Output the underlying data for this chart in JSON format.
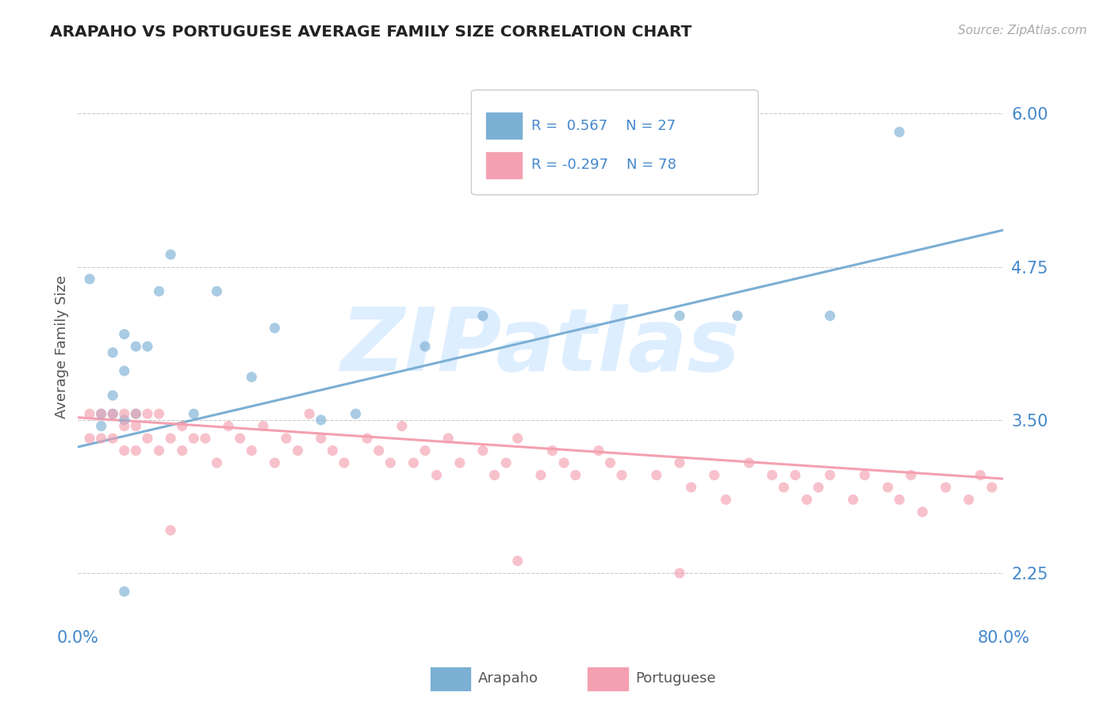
{
  "title": "ARAPAHO VS PORTUGUESE AVERAGE FAMILY SIZE CORRELATION CHART",
  "source_text": "Source: ZipAtlas.com",
  "ylabel": "Average Family Size",
  "xlim": [
    0.0,
    0.8
  ],
  "ylim": [
    1.85,
    6.35
  ],
  "yticks": [
    2.25,
    3.5,
    4.75,
    6.0
  ],
  "ytick_labels": [
    "2.25",
    "3.50",
    "4.75",
    "6.00"
  ],
  "xtick_labels": [
    "0.0%",
    "80.0%"
  ],
  "arapaho_color": "#7BAFD4",
  "portuguese_color": "#F4A0B0",
  "arapaho_scatter_color": "#7BAFD4",
  "portuguese_scatter_color": "#F4A0B0",
  "arapaho_R": 0.567,
  "arapaho_N": 27,
  "portuguese_R": -0.297,
  "portuguese_N": 78,
  "background_color": "#ffffff",
  "grid_color": "#cccccc",
  "title_color": "#222222",
  "axis_label_color": "#555555",
  "tick_color": "#4488CC",
  "arapaho_line_x": [
    0.0,
    0.8
  ],
  "arapaho_line_y": [
    3.28,
    5.05
  ],
  "portuguese_line_x": [
    0.0,
    0.8
  ],
  "portuguese_line_y": [
    3.52,
    3.02
  ],
  "arapaho_points_x": [
    0.01,
    0.02,
    0.02,
    0.03,
    0.03,
    0.03,
    0.04,
    0.04,
    0.04,
    0.05,
    0.05,
    0.06,
    0.07,
    0.08,
    0.1,
    0.12,
    0.15,
    0.17,
    0.21,
    0.24,
    0.3,
    0.35,
    0.52,
    0.57,
    0.65,
    0.71,
    0.04
  ],
  "arapaho_points_y": [
    4.65,
    3.55,
    3.45,
    4.05,
    3.55,
    3.7,
    3.9,
    4.2,
    3.5,
    4.1,
    3.55,
    4.1,
    4.55,
    4.85,
    3.55,
    4.55,
    3.85,
    4.25,
    3.5,
    3.55,
    4.1,
    4.35,
    4.35,
    4.35,
    4.35,
    5.85,
    2.1
  ],
  "portuguese_points_x": [
    0.01,
    0.01,
    0.02,
    0.02,
    0.03,
    0.03,
    0.04,
    0.04,
    0.04,
    0.05,
    0.05,
    0.05,
    0.06,
    0.06,
    0.07,
    0.07,
    0.08,
    0.09,
    0.09,
    0.1,
    0.11,
    0.12,
    0.13,
    0.14,
    0.15,
    0.16,
    0.17,
    0.18,
    0.19,
    0.2,
    0.21,
    0.22,
    0.23,
    0.25,
    0.26,
    0.27,
    0.28,
    0.29,
    0.3,
    0.31,
    0.32,
    0.33,
    0.35,
    0.36,
    0.37,
    0.38,
    0.4,
    0.41,
    0.42,
    0.43,
    0.45,
    0.46,
    0.47,
    0.5,
    0.52,
    0.53,
    0.55,
    0.56,
    0.58,
    0.6,
    0.61,
    0.62,
    0.63,
    0.64,
    0.65,
    0.67,
    0.68,
    0.7,
    0.71,
    0.72,
    0.73,
    0.75,
    0.77,
    0.78,
    0.79,
    0.08,
    0.38,
    0.52
  ],
  "portuguese_points_y": [
    3.55,
    3.35,
    3.55,
    3.35,
    3.55,
    3.35,
    3.45,
    3.25,
    3.55,
    3.55,
    3.25,
    3.45,
    3.55,
    3.35,
    3.25,
    3.55,
    3.35,
    3.45,
    3.25,
    3.35,
    3.35,
    3.15,
    3.45,
    3.35,
    3.25,
    3.45,
    3.15,
    3.35,
    3.25,
    3.55,
    3.35,
    3.25,
    3.15,
    3.35,
    3.25,
    3.15,
    3.45,
    3.15,
    3.25,
    3.05,
    3.35,
    3.15,
    3.25,
    3.05,
    3.15,
    3.35,
    3.05,
    3.25,
    3.15,
    3.05,
    3.25,
    3.15,
    3.05,
    3.05,
    3.15,
    2.95,
    3.05,
    2.85,
    3.15,
    3.05,
    2.95,
    3.05,
    2.85,
    2.95,
    3.05,
    2.85,
    3.05,
    2.95,
    2.85,
    3.05,
    2.75,
    2.95,
    2.85,
    3.05,
    2.95,
    2.6,
    2.35,
    2.25
  ],
  "watermark_text": "ZIPatlas",
  "watermark_color": "#DDEEFF",
  "figsize": [
    14.06,
    8.92
  ],
  "dpi": 100
}
